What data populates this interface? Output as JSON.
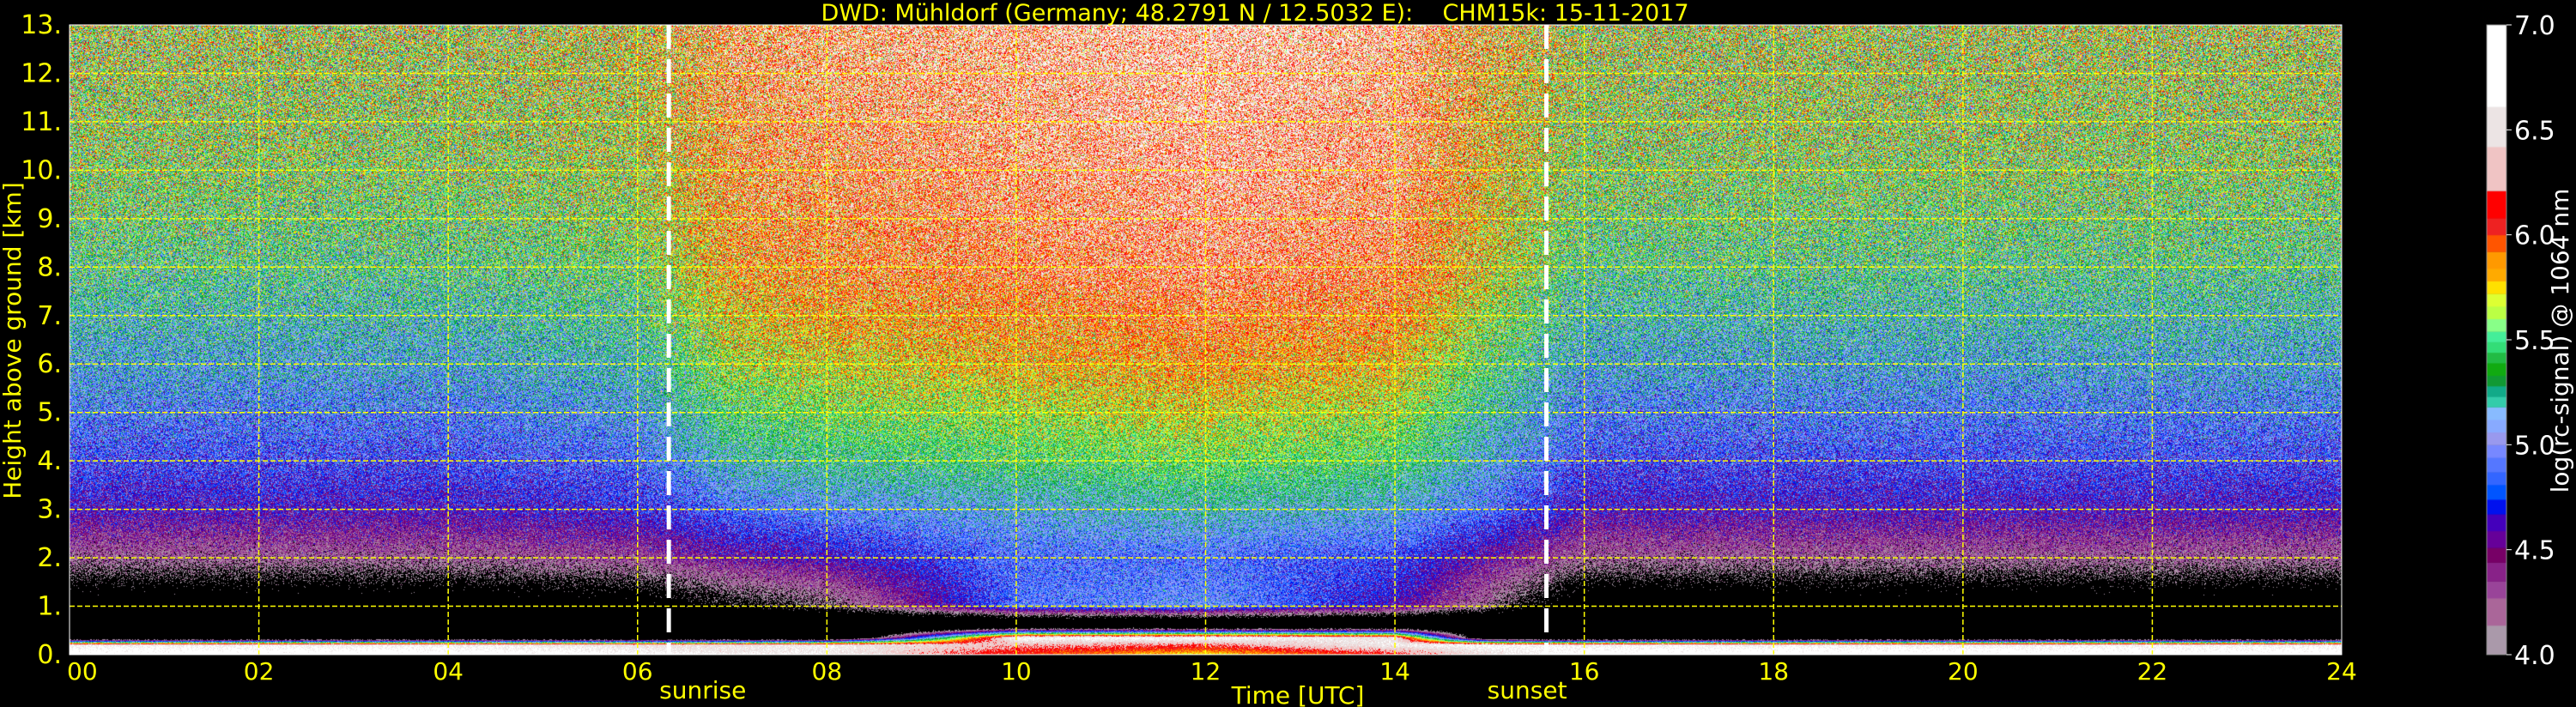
{
  "chart_data": {
    "type": "heatmap",
    "title": "DWD: Mühldorf (Germany; 48.2791 N / 12.5032 E):    CHM15k: 15-11-2017",
    "xlabel": "Time [UTC]",
    "ylabel": "Height above ground [km]",
    "xlim": [
      0,
      24
    ],
    "ylim": [
      0,
      13
    ],
    "x_ticks": [
      "00",
      "02",
      "04",
      "06",
      "08",
      "10",
      "12",
      "14",
      "16",
      "18",
      "20",
      "22",
      "24"
    ],
    "y_ticks": [
      "0.",
      "1.",
      "2.",
      "3.",
      "4.",
      "5.",
      "6.",
      "7.",
      "8.",
      "9.",
      "10.",
      "11.",
      "12.",
      "13."
    ],
    "grid": true,
    "grid_color": "#ffff00",
    "background": "#000000",
    "events": [
      {
        "label": "sunrise",
        "time": 6.33
      },
      {
        "label": "sunset",
        "time": 15.6
      }
    ],
    "signal_grid": {
      "time_utc": [
        0,
        4,
        6,
        7,
        8,
        10,
        12,
        14,
        15,
        16,
        20,
        24
      ],
      "height_km": [
        0,
        0.2,
        0.35,
        0.6,
        1,
        2,
        3,
        4,
        6,
        8,
        10,
        13
      ],
      "mean_log_signal": [
        [
          6.8,
          6.8,
          6.7,
          6.6,
          6.6,
          6.0,
          5.7,
          6.1,
          6.5,
          6.8,
          6.8,
          6.8
        ],
        [
          6.6,
          6.6,
          6.5,
          6.5,
          6.6,
          6.3,
          6.2,
          6.6,
          6.7,
          6.6,
          6.6,
          6.6
        ],
        [
          3.0,
          3.0,
          3.0,
          3.0,
          3.0,
          6.7,
          6.7,
          6.5,
          3.2,
          3.0,
          3.0,
          3.0
        ],
        [
          3.0,
          3.0,
          3.0,
          3.0,
          3.0,
          3.0,
          3.0,
          3.0,
          3.0,
          3.0,
          3.0,
          3.0
        ],
        [
          3.4,
          3.4,
          3.5,
          3.8,
          4.0,
          4.9,
          5.0,
          4.6,
          4.1,
          3.4,
          3.4,
          3.4
        ],
        [
          4.2,
          4.2,
          4.3,
          4.5,
          4.6,
          4.9,
          4.9,
          4.8,
          4.5,
          4.2,
          4.2,
          4.2
        ],
        [
          4.6,
          4.6,
          4.7,
          4.9,
          5.0,
          5.1,
          5.2,
          5.1,
          4.9,
          4.6,
          4.6,
          4.6
        ],
        [
          4.8,
          4.8,
          4.9,
          5.2,
          5.3,
          5.4,
          5.5,
          5.4,
          5.1,
          4.8,
          4.8,
          4.8
        ],
        [
          5.1,
          5.1,
          5.2,
          5.6,
          5.7,
          5.8,
          5.9,
          5.8,
          5.4,
          5.1,
          5.1,
          5.1
        ],
        [
          5.35,
          5.35,
          5.45,
          5.9,
          6.0,
          6.1,
          6.2,
          6.1,
          5.7,
          5.35,
          5.35,
          5.35
        ],
        [
          5.5,
          5.5,
          5.6,
          6.0,
          6.1,
          6.2,
          6.3,
          6.2,
          5.8,
          5.5,
          5.5,
          5.5
        ],
        [
          5.6,
          5.6,
          5.7,
          6.1,
          6.2,
          6.3,
          6.4,
          6.3,
          5.9,
          5.6,
          5.6,
          5.6
        ]
      ]
    },
    "colorbar": {
      "label": "log(rc-signal) @ 1064 nm",
      "range": [
        4.0,
        7.0
      ],
      "ticks": [
        "4.0",
        "4.5",
        "5.0",
        "5.5",
        "6.0",
        "6.5",
        "7.0"
      ],
      "levels": [
        {
          "from": 4.0,
          "color": "#aa99aa"
        },
        {
          "from": 4.14,
          "color": "#aa6699"
        },
        {
          "from": 4.27,
          "color": "#994499"
        },
        {
          "from": 4.35,
          "color": "#882288"
        },
        {
          "from": 4.44,
          "color": "#770066"
        },
        {
          "from": 4.51,
          "color": "#660099"
        },
        {
          "from": 4.59,
          "color": "#4400bb"
        },
        {
          "from": 4.67,
          "color": "#0011ee"
        },
        {
          "from": 4.74,
          "color": "#0055ff"
        },
        {
          "from": 4.81,
          "color": "#3366ff"
        },
        {
          "from": 4.87,
          "color": "#5577ff"
        },
        {
          "from": 4.94,
          "color": "#7788ff"
        },
        {
          "from": 5.0,
          "color": "#9999ee"
        },
        {
          "from": 5.06,
          "color": "#88aaff"
        },
        {
          "from": 5.12,
          "color": "#88bbff"
        },
        {
          "from": 5.18,
          "color": "#33ccaa"
        },
        {
          "from": 5.23,
          "color": "#11aa88"
        },
        {
          "from": 5.28,
          "color": "#119933"
        },
        {
          "from": 5.33,
          "color": "#11aa11"
        },
        {
          "from": 5.39,
          "color": "#22bb44"
        },
        {
          "from": 5.44,
          "color": "#33dd77"
        },
        {
          "from": 5.49,
          "color": "#44ee99"
        },
        {
          "from": 5.54,
          "color": "#88ff88"
        },
        {
          "from": 5.6,
          "color": "#bbff44"
        },
        {
          "from": 5.66,
          "color": "#ddff33"
        },
        {
          "from": 5.72,
          "color": "#ffe000"
        },
        {
          "from": 5.78,
          "color": "#ffaa00"
        },
        {
          "from": 5.84,
          "color": "#ff9900"
        },
        {
          "from": 5.92,
          "color": "#ff5500"
        },
        {
          "from": 6.0,
          "color": "#ee2222"
        },
        {
          "from": 6.08,
          "color": "#ff0000"
        },
        {
          "from": 6.21,
          "color": "#f0c4c4"
        },
        {
          "from": 6.42,
          "color": "#ece4e4"
        },
        {
          "from": 6.61,
          "color": "#ffffff"
        }
      ]
    }
  }
}
